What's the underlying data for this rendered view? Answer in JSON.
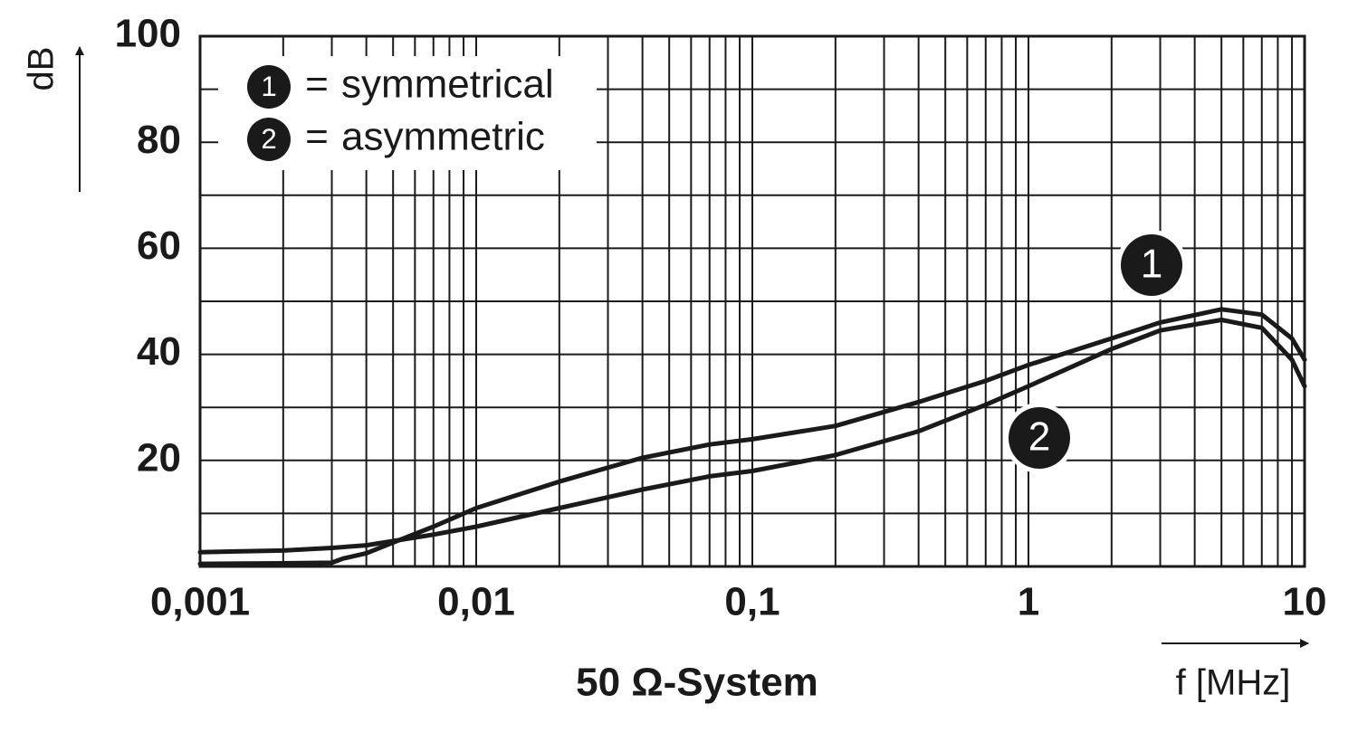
{
  "chart_data": {
    "type": "line",
    "subtitle": "50 Ω-System",
    "x_label": "f [MHz]",
    "y_label": "dB",
    "legend_separator": "=",
    "log_x": true,
    "grid": true,
    "minor_grid": true,
    "legend": "upper left",
    "xlim": [
      0.001,
      10
    ],
    "xticks": [
      {
        "value": 0.001,
        "label": "0,001"
      },
      {
        "value": 0.01,
        "label": "0,01"
      },
      {
        "value": 0.1,
        "label": "0,1"
      },
      1,
      10
    ],
    "ylim": [
      0,
      100
    ],
    "yticks": [
      20,
      40,
      60,
      80,
      100
    ],
    "series": [
      {
        "name": "symmetrical",
        "label": "1",
        "color": "#1a1a1a",
        "x": [
          0.001,
          0.002,
          0.003,
          0.0033,
          0.004,
          0.005,
          0.007,
          0.01,
          0.02,
          0.04,
          0.07,
          0.1,
          0.2,
          0.4,
          0.7,
          1,
          2,
          3,
          5,
          7,
          9,
          10
        ],
        "values": [
          0.5,
          0.6,
          0.7,
          1.5,
          2.5,
          4.5,
          7.5,
          11,
          16,
          20.5,
          23,
          24,
          26.5,
          31,
          35,
          38,
          43,
          46,
          48.5,
          47.5,
          43,
          39
        ]
      },
      {
        "name": "asymmetric",
        "label": "2",
        "color": "#1a1a1a",
        "x": [
          0.001,
          0.002,
          0.003,
          0.004,
          0.007,
          0.01,
          0.02,
          0.04,
          0.07,
          0.1,
          0.2,
          0.4,
          0.7,
          1,
          2,
          3,
          5,
          7,
          9,
          10
        ],
        "values": [
          2.7,
          3,
          3.5,
          4,
          6,
          7.5,
          11,
          14.5,
          17,
          18,
          21,
          25.5,
          30.5,
          34,
          41,
          44.5,
          46.5,
          45,
          39,
          34
        ]
      }
    ]
  }
}
